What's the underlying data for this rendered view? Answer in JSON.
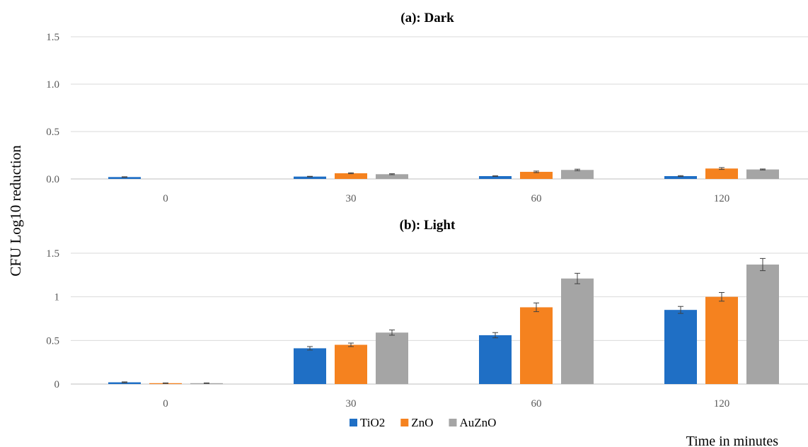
{
  "y_axis_label": "CFU Log10 reduction",
  "x_axis_label": "Time in minutes",
  "colors": {
    "TiO2": "#1f6fc5",
    "ZnO": "#f5821f",
    "AuZnO": "#a5a5a5"
  },
  "chart_data": [
    {
      "type": "bar",
      "title": "(a): Dark",
      "categories": [
        "0",
        "30",
        "60",
        "120"
      ],
      "ylim": [
        0,
        1.5
      ],
      "yticks": [
        "0.0",
        "0.5",
        "1.0",
        "1.5"
      ],
      "grid": true,
      "series": [
        {
          "name": "TiO2",
          "values": [
            0.02,
            0.025,
            0.03,
            0.03
          ],
          "errors": [
            0.003,
            0.003,
            0.003,
            0.005
          ]
        },
        {
          "name": "ZnO",
          "values": [
            0.0,
            0.06,
            0.075,
            0.11
          ],
          "errors": [
            0.0,
            0.005,
            0.008,
            0.01
          ]
        },
        {
          "name": "AuZnO",
          "values": [
            0.0,
            0.05,
            0.095,
            0.1
          ],
          "errors": [
            0.0,
            0.005,
            0.008,
            0.005
          ]
        }
      ]
    },
    {
      "type": "bar",
      "title": "(b): Light",
      "categories": [
        "0",
        "30",
        "60",
        "120"
      ],
      "ylim": [
        0,
        1.5
      ],
      "yticks": [
        "0",
        "0.5",
        "1",
        "1.5"
      ],
      "grid": true,
      "legend_position": "bottom",
      "series": [
        {
          "name": "TiO2",
          "values": [
            0.02,
            0.41,
            0.56,
            0.85
          ],
          "errors": [
            0.005,
            0.02,
            0.03,
            0.04
          ]
        },
        {
          "name": "ZnO",
          "values": [
            0.01,
            0.45,
            0.88,
            1.0
          ],
          "errors": [
            0.003,
            0.02,
            0.05,
            0.05
          ]
        },
        {
          "name": "AuZnO",
          "values": [
            0.01,
            0.59,
            1.21,
            1.37
          ],
          "errors": [
            0.003,
            0.03,
            0.06,
            0.07
          ]
        }
      ]
    }
  ]
}
